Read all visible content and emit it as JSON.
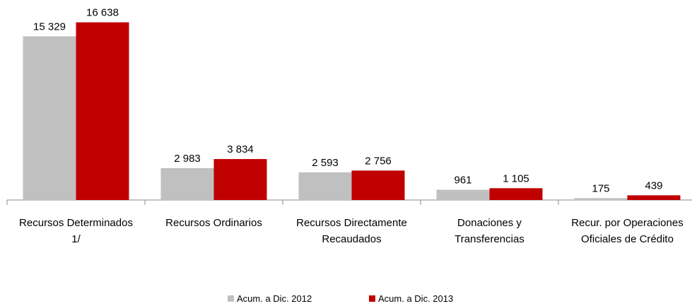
{
  "chart_data": {
    "type": "bar",
    "categories": [
      "Recursos Determinados 1/",
      "Recursos Ordinarios",
      "Recursos Directamente Recaudados",
      "Donaciones y Transferencias",
      "Recur. por Operaciones Oficiales de Crédito"
    ],
    "series": [
      {
        "name": "Acum. a Dic. 2012",
        "color": "#c0c0c0",
        "values": [
          15329,
          2983,
          2593,
          961,
          175
        ],
        "value_labels": [
          "15 329",
          "2 983",
          "2 593",
          "961",
          "175"
        ]
      },
      {
        "name": "Acum. a Dic. 2013",
        "color": "#c00000",
        "values": [
          16638,
          3834,
          2756,
          1105,
          439
        ],
        "value_labels": [
          "16 638",
          "3 834",
          "2 756",
          "1 105",
          "439"
        ]
      }
    ],
    "ylim": [
      0,
      18000
    ],
    "grid": false,
    "legend": "bottom"
  }
}
